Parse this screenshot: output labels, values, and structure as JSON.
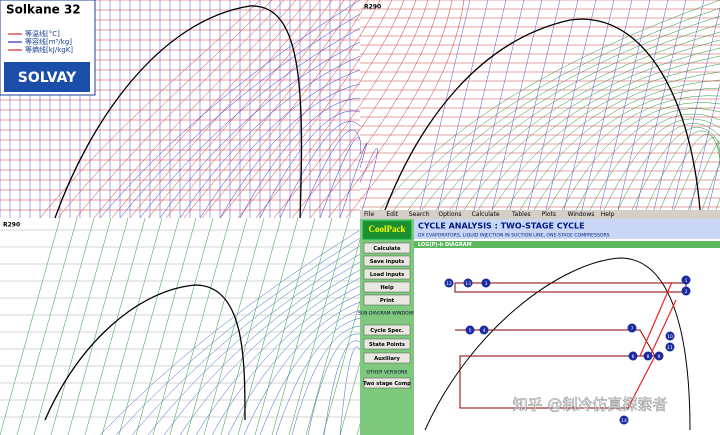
{
  "panels": {
    "solkane": {
      "title": "Solkane 32",
      "legend": [
        "等温线[°C]",
        "等容线[m³/kg]",
        "等熵线[kJ/kgK]"
      ],
      "brand": "SOLVAY"
    },
    "r290_top": {
      "title": "R290"
    },
    "r290_bottom": {
      "title": "R290"
    },
    "coolpack": {
      "menu": [
        "File",
        "Edit",
        "Search",
        "Options",
        "Calculate",
        "Tables",
        "Plots",
        "Windows",
        "Help"
      ],
      "logo": "CoolPack",
      "buttons": [
        "Calculate",
        "Save inputs",
        "Load inputs",
        "Help",
        "Print"
      ],
      "sub_heading": "SUB-DIAGRAM WINDOWS",
      "sub_buttons": [
        "Cycle Spec.",
        "State Points",
        "Auxiliary"
      ],
      "other_heading": "OTHER VERSIONS",
      "other_button": "Two stage Comp",
      "title": "CYCLE ANALYSIS : TWO-STAGE CYCLE",
      "subtitle": "DX EVAPORATORS, LIQUID INJECTION IN SUCTION LINE, ONE-STAGE COMPRESSORS",
      "diagram_label": "LOG(P)-h DIAGRAM",
      "state_points": [
        "1",
        "2",
        "3",
        "4",
        "5",
        "6",
        "7",
        "8",
        "9",
        "10",
        "11",
        "12",
        "13",
        "14"
      ]
    }
  },
  "watermark": "知乎 @制冷仿真探索者"
}
